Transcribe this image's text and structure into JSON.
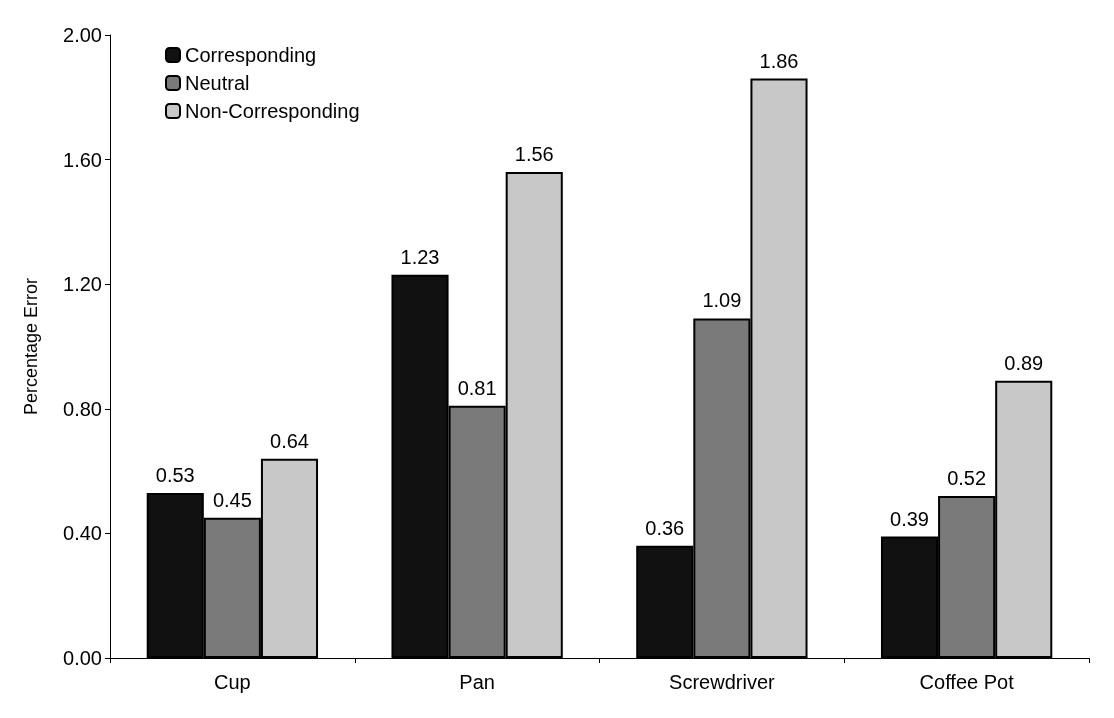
{
  "chart_data": {
    "type": "bar",
    "ylabel": "Percentage Error",
    "categories": [
      "Cup",
      "Pan",
      "Screwdriver",
      "Coffee Pot"
    ],
    "series": [
      {
        "name": "Corresponding",
        "color": "#111111",
        "values": [
          0.53,
          1.23,
          0.36,
          0.39
        ]
      },
      {
        "name": "Neutral",
        "color": "#7a7a7a",
        "values": [
          0.45,
          0.81,
          1.09,
          0.52
        ]
      },
      {
        "name": "Non-Corresponding",
        "color": "#c8c8c8",
        "values": [
          0.64,
          1.56,
          1.86,
          0.89
        ]
      }
    ],
    "ylim": [
      0,
      2
    ],
    "yticks": [
      {
        "value": 0,
        "label": "0.00"
      },
      {
        "value": 0.4,
        "label": "0.40"
      },
      {
        "value": 0.8,
        "label": "0.80"
      },
      {
        "value": 1.2,
        "label": "1.20"
      },
      {
        "value": 1.6,
        "label": "1.60"
      },
      {
        "value": 2,
        "label": "2.00"
      }
    ],
    "grid": false,
    "legend": "top left",
    "data_labels": true
  }
}
